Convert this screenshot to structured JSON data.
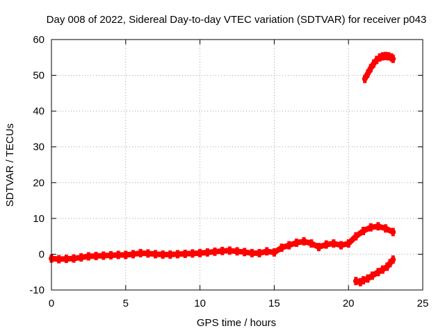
{
  "chart_data": {
    "type": "scatter",
    "title": "Day 008 of 2022, Sidereal Day-to-day VTEC variation (SDTVAR) for receiver p043",
    "xlabel": "GPS time / hours",
    "ylabel": "SDTVAR / TECUs",
    "xlim": [
      0,
      25
    ],
    "ylim": [
      -10,
      60
    ],
    "xticks": [
      0,
      5,
      10,
      15,
      20,
      25
    ],
    "yticks": [
      -10,
      0,
      10,
      20,
      30,
      40,
      50,
      60
    ],
    "grid": true,
    "colors": {
      "series": "#ff0000",
      "grid": "#a0a0a0",
      "axes": "#000000"
    },
    "series": [
      {
        "name": "main trace",
        "x": [
          0.0,
          0.5,
          1.0,
          1.5,
          2.0,
          2.5,
          3.0,
          3.5,
          4.0,
          4.5,
          5.0,
          5.5,
          6.0,
          6.5,
          7.0,
          7.5,
          8.0,
          8.5,
          9.0,
          9.5,
          10.0,
          10.5,
          11.0,
          11.5,
          12.0,
          12.5,
          13.0,
          13.5,
          14.0,
          14.5,
          15.0,
          15.5,
          16.0,
          16.5,
          17.0,
          17.5,
          18.0,
          18.5,
          19.0,
          19.5,
          20.0,
          20.5,
          21.0,
          21.5,
          22.0,
          22.5,
          23.0
        ],
        "y": [
          -1.2,
          -1.4,
          -1.3,
          -1.2,
          -0.9,
          -0.6,
          -0.5,
          -0.4,
          -0.3,
          -0.2,
          -0.2,
          0.0,
          0.3,
          0.2,
          0.0,
          -0.1,
          -0.1,
          0.0,
          0.1,
          0.2,
          0.3,
          0.5,
          0.7,
          0.9,
          1.0,
          0.8,
          0.6,
          0.3,
          0.3,
          0.8,
          0.5,
          1.8,
          2.5,
          3.2,
          3.6,
          3.0,
          2.0,
          2.7,
          3.0,
          2.5,
          3.0,
          5.0,
          6.5,
          7.5,
          7.8,
          7.2,
          6.2
        ]
      },
      {
        "name": "lower branch",
        "x": [
          20.5,
          20.8,
          21.0,
          21.3,
          21.6,
          22.0,
          22.3,
          22.6,
          22.8,
          23.0
        ],
        "y": [
          -7.5,
          -7.8,
          -7.3,
          -6.8,
          -6.0,
          -5.0,
          -4.3,
          -3.5,
          -2.5,
          -1.5
        ]
      },
      {
        "name": "upper branch",
        "x": [
          21.1,
          21.3,
          21.5,
          21.7,
          21.9,
          22.1,
          22.3,
          22.5,
          22.7,
          22.9,
          23.0
        ],
        "y": [
          49.0,
          50.5,
          52.0,
          53.3,
          54.3,
          55.0,
          55.3,
          55.4,
          55.3,
          55.0,
          54.6
        ]
      }
    ]
  }
}
